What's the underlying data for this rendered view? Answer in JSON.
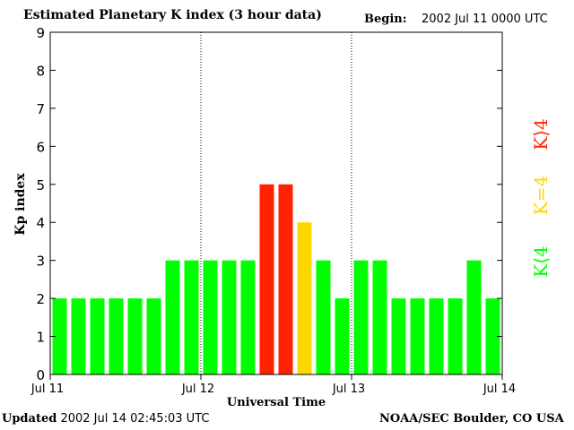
{
  "header": {
    "title": "Estimated Planetary K index (3 hour data)",
    "begin_label": "Begin:",
    "begin_value": "2002 Jul 11 0000 UTC"
  },
  "footer": {
    "updated_label": "Updated",
    "updated_value": "2002 Jul 14 02:45:03 UTC",
    "source": "NOAA/SEC Boulder, CO USA"
  },
  "legend": {
    "greater": "K⟩4",
    "equal": "K=4",
    "less": "K⟨4"
  },
  "colors": {
    "low": "#00ff00",
    "mid": "#ffd700",
    "high": "#ff2200"
  },
  "chart_data": {
    "type": "bar",
    "title": "Estimated Planetary K index (3 hour data)",
    "xlabel": "Universal Time",
    "ylabel": "Kp index",
    "ylim": [
      0,
      9
    ],
    "yticks": [
      "0",
      "1",
      "2",
      "3",
      "4",
      "5",
      "6",
      "7",
      "8",
      "9"
    ],
    "xtick_labels": [
      "Jul 11",
      "Jul 12",
      "Jul 13",
      "Jul 14"
    ],
    "day_dividers": [
      "Jul 12",
      "Jul 13"
    ],
    "bars_per_day": 8,
    "values": [
      2,
      2,
      2,
      2,
      2,
      2,
      3,
      3,
      3,
      3,
      3,
      5,
      5,
      4,
      3,
      2,
      3,
      3,
      2,
      2,
      2,
      2,
      3,
      2
    ]
  }
}
